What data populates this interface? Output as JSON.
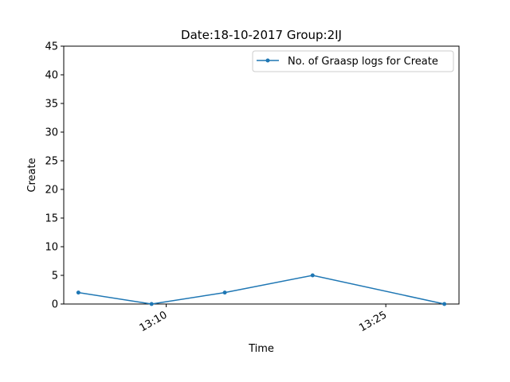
{
  "chart_data": {
    "type": "line",
    "title": "Date:18-10-2017  Group:2IJ",
    "xlabel": "Time",
    "ylabel": "Create",
    "x": [
      "13:04",
      "13:09",
      "13:14",
      "13:20",
      "13:29"
    ],
    "xticks": [
      "13:10",
      "13:25"
    ],
    "xlim": [
      "13:03",
      "13:30"
    ],
    "ylim": [
      0,
      45
    ],
    "yticks": [
      0,
      5,
      10,
      15,
      20,
      25,
      30,
      35,
      40,
      45
    ],
    "series": [
      {
        "name": "No. of Graasp logs for Create",
        "values": [
          2,
          0,
          2,
          5,
          0
        ],
        "color": "#1f77b4"
      }
    ],
    "legend": "top-right",
    "grid": false
  }
}
